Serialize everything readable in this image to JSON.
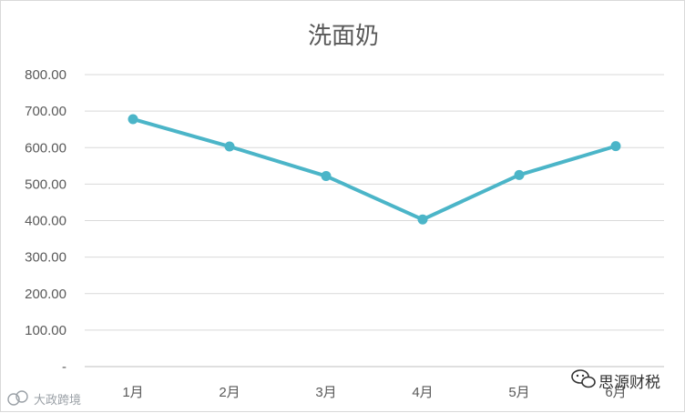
{
  "chart_data": {
    "type": "line",
    "title": "洗面奶",
    "categories": [
      "1月",
      "2月",
      "3月",
      "4月",
      "5月",
      "6月"
    ],
    "series": [
      {
        "values": [
          678,
          603,
          522,
          403,
          525,
          604
        ],
        "color": "#4bb5c8"
      }
    ],
    "yticks": [
      "-",
      "100.00",
      "200.00",
      "300.00",
      "400.00",
      "500.00",
      "600.00",
      "700.00",
      "800.00"
    ],
    "ylim": [
      0,
      800
    ],
    "ystep": 100,
    "grid": true,
    "legend": "none"
  },
  "watermarks": {
    "right": "思源财税",
    "left": "大政跨境"
  }
}
